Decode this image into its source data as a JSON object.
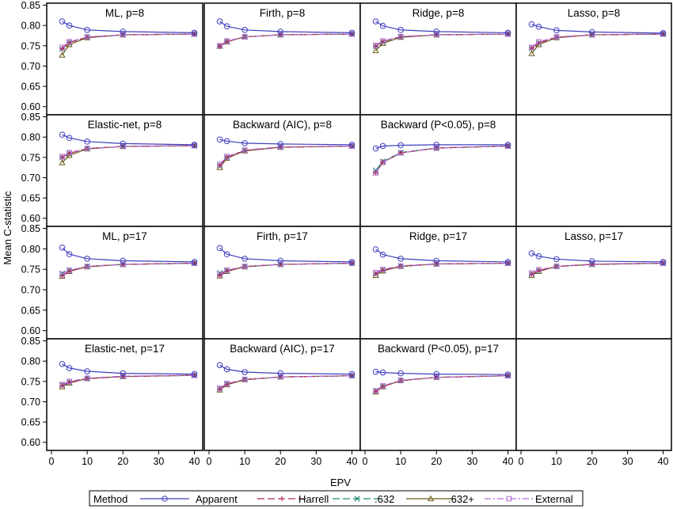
{
  "chart_data": {
    "type": "line",
    "xlabel": "EPV",
    "ylabel": "Mean C-statistic",
    "ylim": [
      0.58,
      0.855
    ],
    "xlim": [
      0,
      41
    ],
    "xticks": [
      0,
      10,
      20,
      30,
      40
    ],
    "yticks": [
      "0.60",
      "0.65",
      "0.70",
      "0.75",
      "0.80",
      "0.85"
    ],
    "x": [
      3,
      5,
      10,
      20,
      40
    ],
    "legend": {
      "title": "Method",
      "position": "bottom",
      "items": [
        {
          "name": "Apparent",
          "color": "#3f3fbf",
          "marker": "circle",
          "dash": "solid"
        },
        {
          "name": "Harrell",
          "color": "#b8234a",
          "marker": "plus",
          "dash": "long-dash"
        },
        {
          "name": ".632",
          "color": "#1f8a70",
          "marker": "x",
          "dash": "long-dash"
        },
        {
          "name": ".632+",
          "color": "#6b5a1a",
          "marker": "triangle",
          "dash": "solid"
        },
        {
          "name": "External",
          "color": "#b36ad6",
          "marker": "square",
          "dash": "dash-dot"
        }
      ]
    },
    "panels": [
      {
        "title": "ML, p=8",
        "series": {
          "Apparent": [
            0.81,
            0.8,
            0.789,
            0.785,
            0.782
          ],
          "Harrell": [
            0.743,
            0.758,
            0.771,
            0.777,
            0.779
          ],
          ".632": [
            0.742,
            0.758,
            0.771,
            0.777,
            0.779
          ],
          ".632+": [
            0.727,
            0.753,
            0.77,
            0.777,
            0.779
          ],
          "External": [
            0.746,
            0.76,
            0.772,
            0.777,
            0.779
          ]
        }
      },
      {
        "title": "Firth, p=8",
        "series": {
          "Apparent": [
            0.81,
            0.798,
            0.789,
            0.785,
            0.782
          ],
          "Harrell": [
            0.748,
            0.76,
            0.772,
            0.777,
            0.779
          ],
          ".632": [
            0.749,
            0.76,
            0.772,
            0.777,
            0.779
          ],
          ".632+": [
            0.749,
            0.76,
            0.772,
            0.777,
            0.779
          ],
          "External": [
            0.75,
            0.762,
            0.772,
            0.777,
            0.779
          ]
        }
      },
      {
        "title": "Ridge, p=8",
        "series": {
          "Apparent": [
            0.81,
            0.799,
            0.789,
            0.785,
            0.782
          ],
          "Harrell": [
            0.749,
            0.761,
            0.772,
            0.777,
            0.779
          ],
          ".632": [
            0.749,
            0.76,
            0.772,
            0.777,
            0.779
          ],
          ".632+": [
            0.738,
            0.756,
            0.771,
            0.777,
            0.779
          ],
          "External": [
            0.751,
            0.762,
            0.773,
            0.777,
            0.779
          ]
        }
      },
      {
        "title": "Lasso, p=8",
        "series": {
          "Apparent": [
            0.803,
            0.797,
            0.788,
            0.784,
            0.781
          ],
          "Harrell": [
            0.744,
            0.757,
            0.771,
            0.777,
            0.779
          ],
          ".632": [
            0.744,
            0.757,
            0.771,
            0.777,
            0.779
          ],
          ".632+": [
            0.731,
            0.753,
            0.77,
            0.777,
            0.779
          ],
          "External": [
            0.746,
            0.76,
            0.772,
            0.777,
            0.779
          ]
        }
      },
      {
        "title": "Elastic-net, p=8",
        "series": {
          "Apparent": [
            0.806,
            0.798,
            0.789,
            0.784,
            0.781
          ],
          "Harrell": [
            0.75,
            0.76,
            0.772,
            0.777,
            0.779
          ],
          ".632": [
            0.75,
            0.76,
            0.772,
            0.777,
            0.779
          ],
          ".632+": [
            0.737,
            0.755,
            0.771,
            0.777,
            0.779
          ],
          "External": [
            0.752,
            0.762,
            0.772,
            0.777,
            0.779
          ]
        }
      },
      {
        "title": "Backward (AIC), p=8",
        "series": {
          "Apparent": [
            0.794,
            0.79,
            0.785,
            0.783,
            0.781
          ],
          "Harrell": [
            0.73,
            0.75,
            0.767,
            0.775,
            0.778
          ],
          ".632": [
            0.73,
            0.75,
            0.767,
            0.775,
            0.778
          ],
          ".632+": [
            0.725,
            0.748,
            0.766,
            0.775,
            0.778
          ],
          "External": [
            0.733,
            0.752,
            0.768,
            0.776,
            0.778
          ]
        }
      },
      {
        "title": "Backward (P<0.05), p=8",
        "series": {
          "Apparent": [
            0.772,
            0.778,
            0.78,
            0.781,
            0.781
          ],
          "Harrell": [
            0.712,
            0.738,
            0.761,
            0.773,
            0.778
          ],
          ".632": [
            0.718,
            0.74,
            0.762,
            0.773,
            0.778
          ],
          ".632+": [
            0.712,
            0.738,
            0.761,
            0.773,
            0.778
          ],
          "External": [
            0.712,
            0.738,
            0.761,
            0.773,
            0.778
          ]
        }
      },
      null,
      {
        "title": "ML, p=17",
        "series": {
          "Apparent": [
            0.803,
            0.787,
            0.776,
            0.771,
            0.768
          ],
          "Harrell": [
            0.733,
            0.745,
            0.757,
            0.762,
            0.765
          ],
          ".632": [
            0.74,
            0.747,
            0.757,
            0.762,
            0.765
          ],
          ".632+": [
            0.733,
            0.745,
            0.756,
            0.762,
            0.765
          ],
          "External": [
            0.738,
            0.748,
            0.757,
            0.762,
            0.765
          ]
        }
      },
      {
        "title": "Firth, p=17",
        "series": {
          "Apparent": [
            0.802,
            0.787,
            0.776,
            0.771,
            0.768
          ],
          "Harrell": [
            0.735,
            0.746,
            0.757,
            0.762,
            0.765
          ],
          ".632": [
            0.741,
            0.747,
            0.757,
            0.762,
            0.765
          ],
          ".632+": [
            0.734,
            0.745,
            0.756,
            0.762,
            0.765
          ],
          "External": [
            0.738,
            0.748,
            0.757,
            0.762,
            0.765
          ]
        }
      },
      {
        "title": "Ridge, p=17",
        "series": {
          "Apparent": [
            0.799,
            0.786,
            0.776,
            0.771,
            0.768
          ],
          "Harrell": [
            0.739,
            0.748,
            0.758,
            0.763,
            0.765
          ],
          ".632": [
            0.74,
            0.748,
            0.758,
            0.763,
            0.765
          ],
          ".632+": [
            0.735,
            0.746,
            0.757,
            0.763,
            0.765
          ],
          "External": [
            0.742,
            0.75,
            0.758,
            0.763,
            0.765
          ]
        }
      },
      {
        "title": "Lasso, p=17",
        "series": {
          "Apparent": [
            0.789,
            0.782,
            0.775,
            0.77,
            0.768
          ],
          "Harrell": [
            0.738,
            0.747,
            0.757,
            0.762,
            0.765
          ],
          ".632": [
            0.739,
            0.747,
            0.757,
            0.762,
            0.765
          ],
          ".632+": [
            0.735,
            0.745,
            0.757,
            0.762,
            0.765
          ],
          "External": [
            0.741,
            0.749,
            0.757,
            0.763,
            0.765
          ]
        }
      },
      {
        "title": "Elastic-net, p=17",
        "series": {
          "Apparent": [
            0.793,
            0.783,
            0.775,
            0.77,
            0.768
          ],
          "Harrell": [
            0.74,
            0.748,
            0.757,
            0.762,
            0.765
          ],
          ".632": [
            0.742,
            0.748,
            0.757,
            0.762,
            0.765
          ],
          ".632+": [
            0.737,
            0.746,
            0.757,
            0.762,
            0.765
          ],
          "External": [
            0.742,
            0.75,
            0.758,
            0.763,
            0.765
          ]
        }
      },
      {
        "title": "Backward (AIC), p=17",
        "series": {
          "Apparent": [
            0.79,
            0.78,
            0.773,
            0.77,
            0.768
          ],
          "Harrell": [
            0.731,
            0.743,
            0.755,
            0.761,
            0.764
          ],
          ".632": [
            0.733,
            0.744,
            0.755,
            0.761,
            0.764
          ],
          ".632+": [
            0.729,
            0.742,
            0.754,
            0.761,
            0.764
          ],
          "External": [
            0.733,
            0.745,
            0.755,
            0.761,
            0.764
          ]
        }
      },
      {
        "title": "Backward (P<0.05), p=17",
        "series": {
          "Apparent": [
            0.774,
            0.772,
            0.77,
            0.768,
            0.767
          ],
          "Harrell": [
            0.725,
            0.737,
            0.752,
            0.76,
            0.764
          ],
          ".632": [
            0.727,
            0.738,
            0.752,
            0.76,
            0.764
          ],
          ".632+": [
            0.724,
            0.737,
            0.752,
            0.76,
            0.764
          ],
          "External": [
            0.727,
            0.739,
            0.753,
            0.76,
            0.764
          ]
        }
      },
      null
    ]
  }
}
